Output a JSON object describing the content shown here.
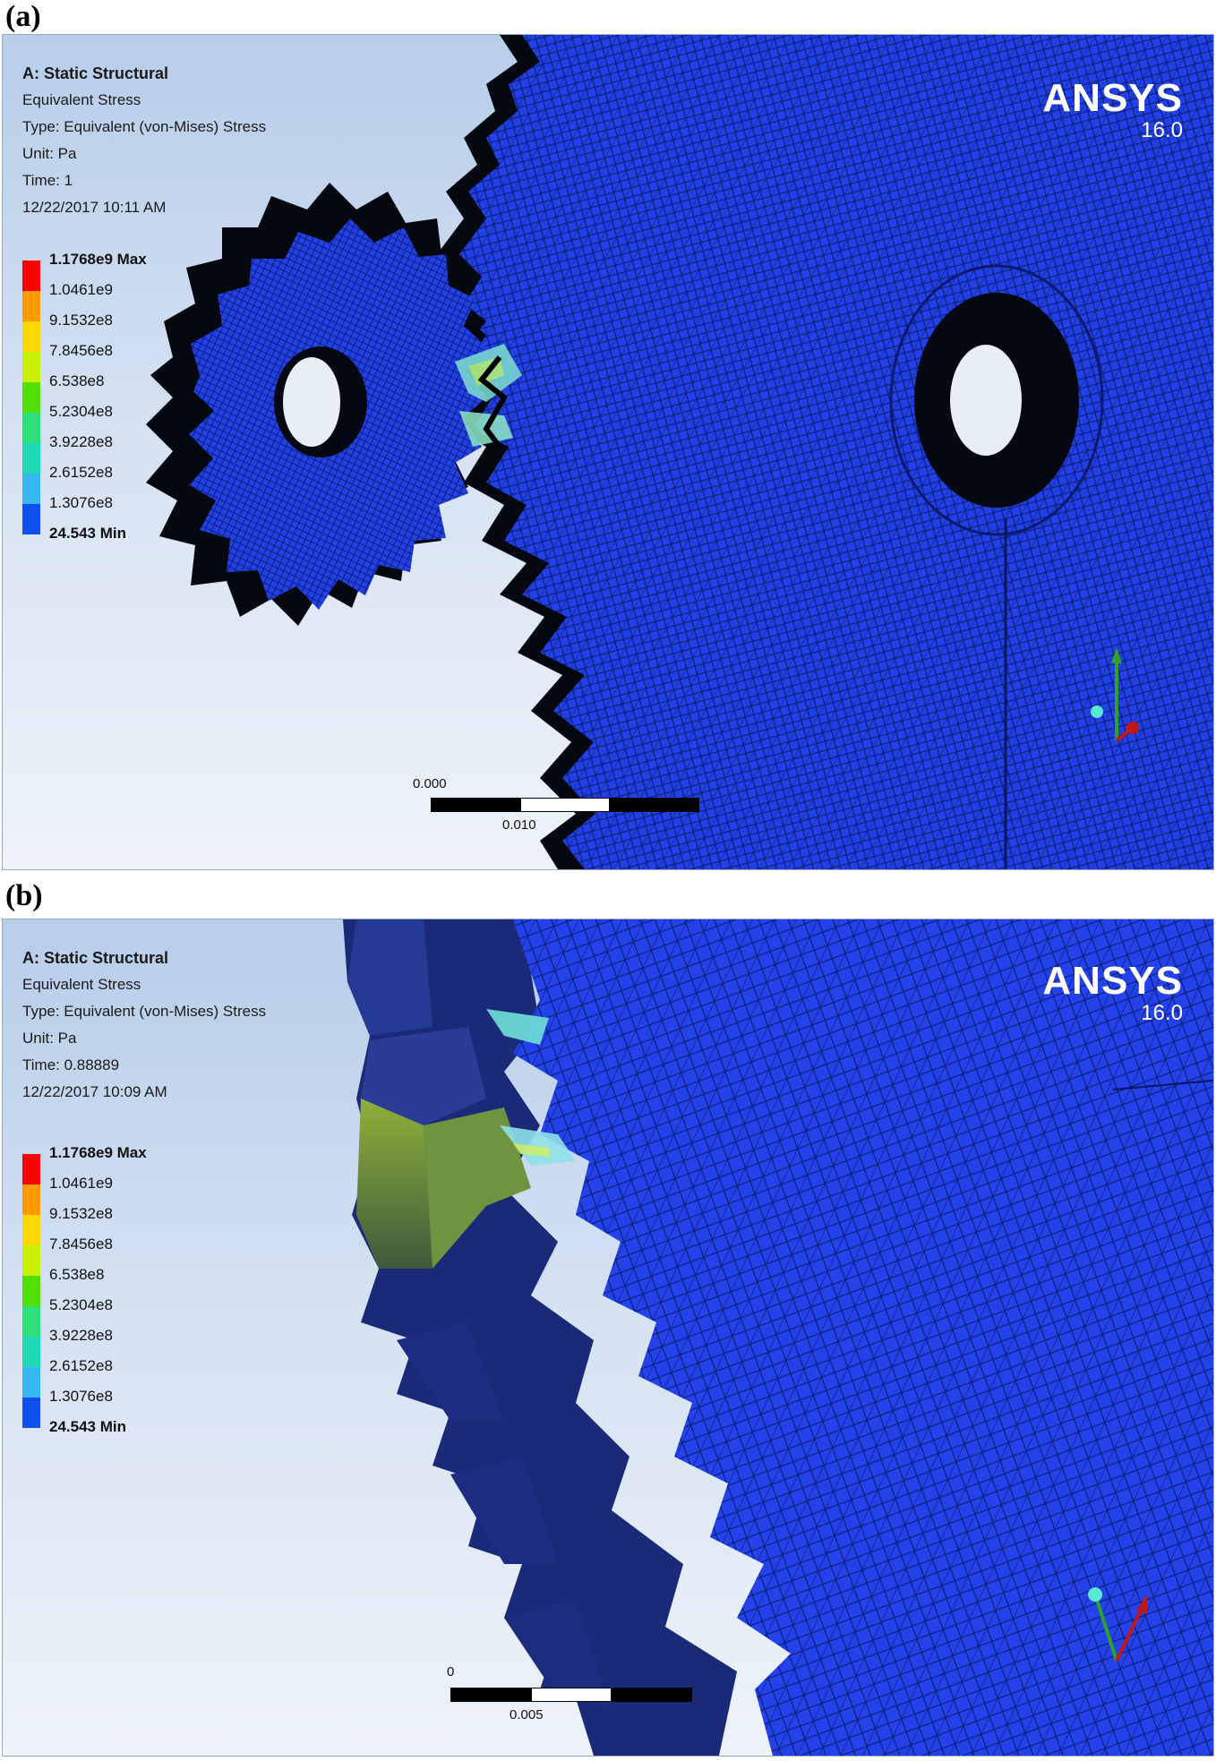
{
  "panels": [
    {
      "letter": "(a)",
      "info": {
        "analysis": "A: Static Structural",
        "result": "Equivalent Stress",
        "type": "Type: Equivalent (von-Mises) Stress",
        "unit": "Unit: Pa",
        "time": "Time: 1",
        "timestamp": "12/22/2017 10:11 AM"
      },
      "legend": {
        "labels": [
          "1.1768e9 Max",
          "1.0461e9",
          "9.1532e8",
          "7.8456e8",
          "6.538e8",
          "5.2304e8",
          "3.9228e8",
          "2.6152e8",
          "1.3076e8"
        ],
        "min_label": "24.543 Min",
        "colors": [
          "#ff0000",
          "#ff9a00",
          "#ffd800",
          "#c8f000",
          "#52e000",
          "#2de07a",
          "#1ed9b4",
          "#38b8f2",
          "#1050f0"
        ]
      },
      "brand": {
        "name": "ANSYS",
        "version": "16.0"
      },
      "scale": {
        "start": "0.000",
        "mid": "0.010"
      }
    },
    {
      "letter": "(b)",
      "info": {
        "analysis": "A: Static Structural",
        "result": "Equivalent Stress",
        "type": "Type: Equivalent (von-Mises) Stress",
        "unit": "Unit: Pa",
        "time": "Time: 0.88889",
        "timestamp": "12/22/2017 10:09 AM"
      },
      "legend": {
        "labels": [
          "1.1768e9 Max",
          "1.0461e9",
          "9.1532e8",
          "7.8456e8",
          "6.538e8",
          "5.2304e8",
          "3.9228e8",
          "2.6152e8",
          "1.3076e8"
        ],
        "min_label": "24.543 Min",
        "colors": [
          "#ff0000",
          "#ff9a00",
          "#ffd800",
          "#c8f000",
          "#52e000",
          "#2de07a",
          "#1ed9b4",
          "#38b8f2",
          "#1050f0"
        ]
      },
      "brand": {
        "name": "ANSYS",
        "version": "16.0"
      },
      "scale": {
        "start": "0",
        "mid": "0.005"
      }
    }
  ],
  "theme": {
    "mesh_blue": "#1f3fe6",
    "mesh_line": "#0b1a6e",
    "shadow": "#0a0f2a",
    "stress_green": "#7fa030",
    "stress_cyan": "#6fe0d6"
  }
}
